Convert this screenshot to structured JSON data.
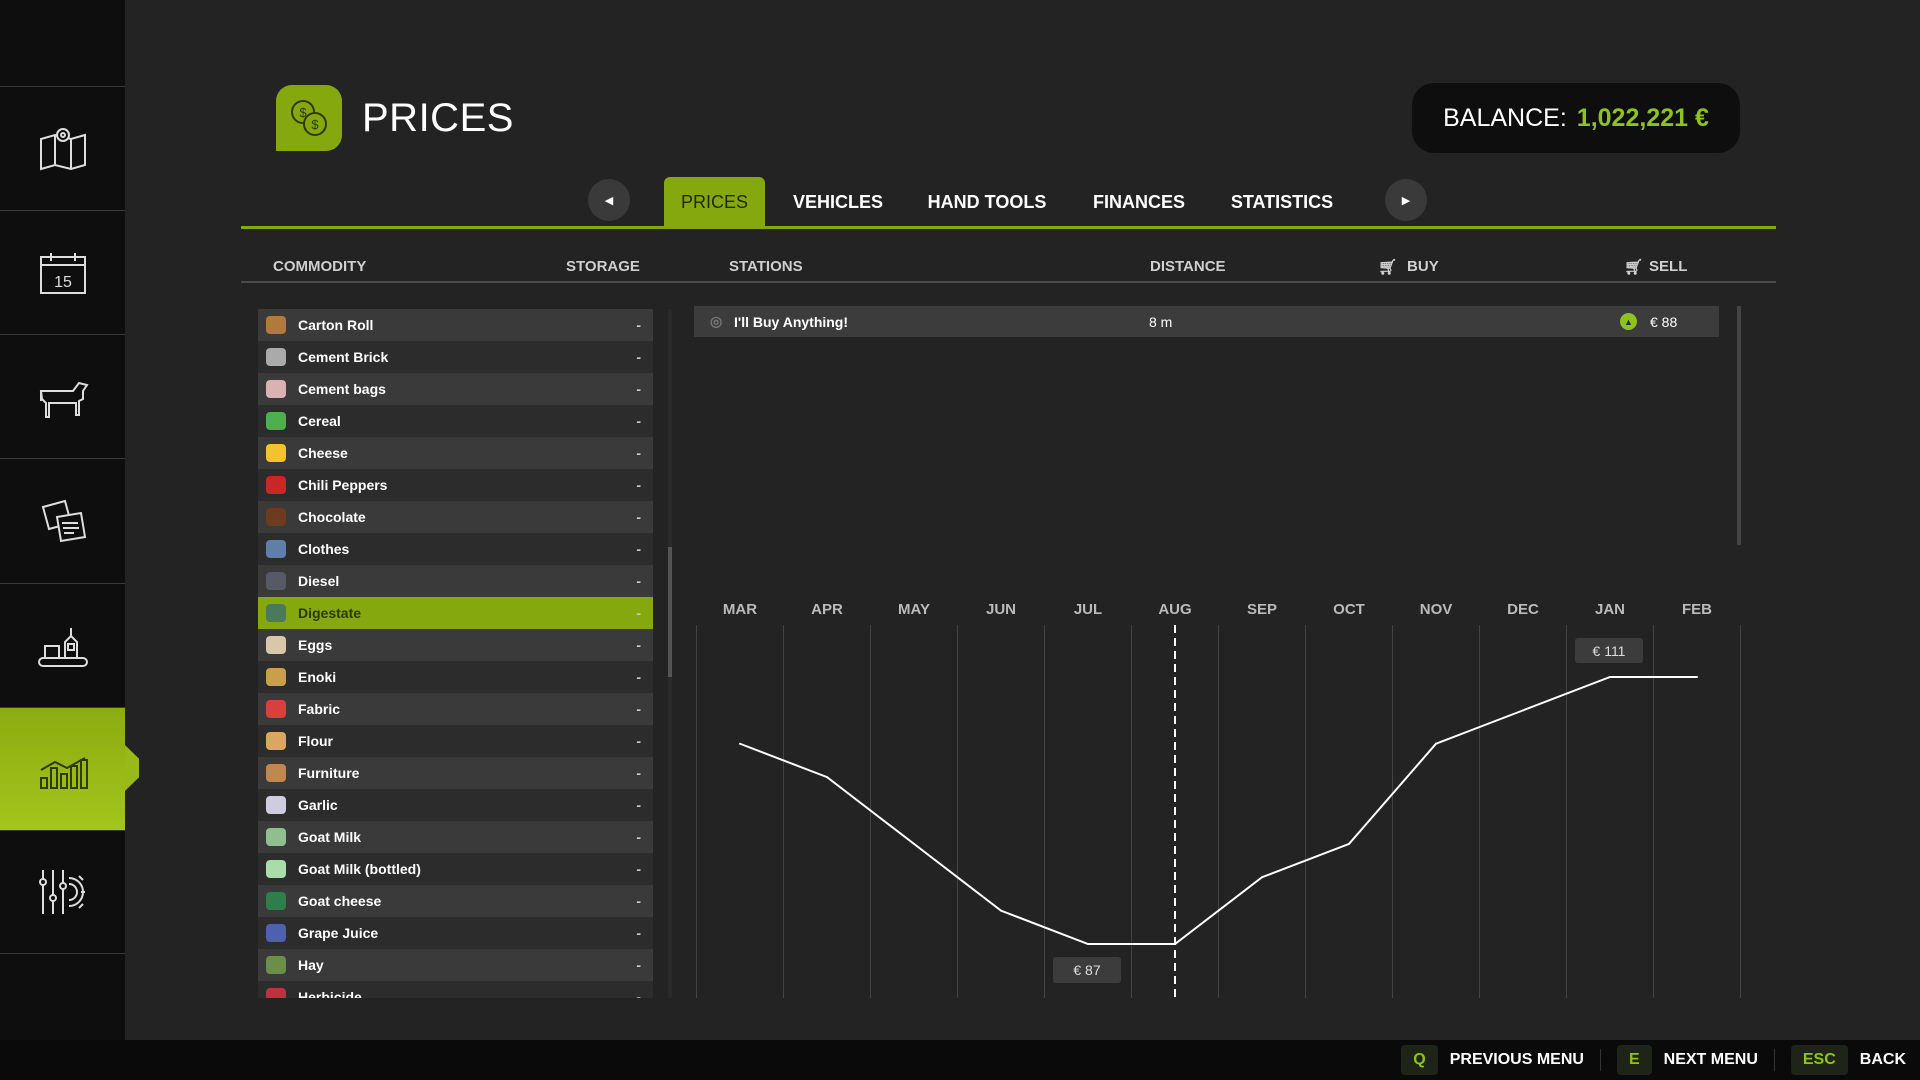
{
  "sidebar": {
    "items": [
      {
        "icon": "map-icon",
        "active": false
      },
      {
        "icon": "calendar-icon",
        "label": "15",
        "active": false
      },
      {
        "icon": "cow-icon",
        "active": false
      },
      {
        "icon": "contracts-icon",
        "active": false
      },
      {
        "icon": "production-icon",
        "active": false
      },
      {
        "icon": "prices-chart-icon",
        "active": true
      },
      {
        "icon": "settings-icon",
        "active": false
      }
    ]
  },
  "header": {
    "title": "PRICES",
    "icon": "coins-icon",
    "balance_label": "BALANCE:",
    "balance_value": "1,022,221 €"
  },
  "tabs": [
    {
      "label": "PRICES",
      "active": true
    },
    {
      "label": "VEHICLES"
    },
    {
      "label": "HAND TOOLS"
    },
    {
      "label": "FINANCES"
    },
    {
      "label": "STATISTICS"
    }
  ],
  "columns": {
    "commodity": "COMMODITY",
    "storage": "STORAGE",
    "stations": "STATIONS",
    "distance": "DISTANCE",
    "buy": "BUY",
    "sell": "SELL"
  },
  "commodities": [
    {
      "name": "Carton Roll",
      "storage": "-",
      "color": "#b07a3c"
    },
    {
      "name": "Cement Brick",
      "storage": "-",
      "color": "#aaaaaa"
    },
    {
      "name": "Cement bags",
      "storage": "-",
      "color": "#d9b3b3"
    },
    {
      "name": "Cereal",
      "storage": "-",
      "color": "#4caf50"
    },
    {
      "name": "Cheese",
      "storage": "-",
      "color": "#f2c230"
    },
    {
      "name": "Chili Peppers",
      "storage": "-",
      "color": "#c62828"
    },
    {
      "name": "Chocolate",
      "storage": "-",
      "color": "#6d3b1e"
    },
    {
      "name": "Clothes",
      "storage": "-",
      "color": "#5d7fa8"
    },
    {
      "name": "Diesel",
      "storage": "-",
      "color": "#555a66"
    },
    {
      "name": "Digestate",
      "storage": "-",
      "color": "#4a7a5a",
      "selected": true
    },
    {
      "name": "Eggs",
      "storage": "-",
      "color": "#d8c7a8"
    },
    {
      "name": "Enoki",
      "storage": "-",
      "color": "#c9a04a"
    },
    {
      "name": "Fabric",
      "storage": "-",
      "color": "#d84040"
    },
    {
      "name": "Flour",
      "storage": "-",
      "color": "#d8a860"
    },
    {
      "name": "Furniture",
      "storage": "-",
      "color": "#c08850"
    },
    {
      "name": "Garlic",
      "storage": "-",
      "color": "#d0cce0"
    },
    {
      "name": "Goat Milk",
      "storage": "-",
      "color": "#8fbf8f"
    },
    {
      "name": "Goat Milk (bottled)",
      "storage": "-",
      "color": "#a8dca8"
    },
    {
      "name": "Goat cheese",
      "storage": "-",
      "color": "#2e7d4a"
    },
    {
      "name": "Grape Juice",
      "storage": "-",
      "color": "#5060b0"
    },
    {
      "name": "Hay",
      "storage": "-",
      "color": "#6b8f4a"
    },
    {
      "name": "Herbicide",
      "storage": "-",
      "color": "#c03040"
    }
  ],
  "stations": [
    {
      "name": "I'll Buy Anything!",
      "distance": "8 m",
      "sell_price": "€ 88",
      "trend": "up"
    }
  ],
  "chart_data": {
    "type": "line",
    "categories": [
      "MAR",
      "APR",
      "MAY",
      "JUN",
      "JUL",
      "AUG",
      "SEP",
      "OCT",
      "NOV",
      "DEC",
      "JAN",
      "FEB"
    ],
    "values": [
      105,
      102,
      96,
      90,
      87,
      87,
      93,
      96,
      105,
      108,
      111,
      111
    ],
    "current_month": "AUG",
    "min_label": "€ 87",
    "max_label": "€ 111",
    "ylim": [
      87,
      111
    ],
    "grid": true
  },
  "colors": {
    "accent": "#86a80f",
    "balance": "#8dc21f"
  },
  "footer": [
    {
      "key": "Q",
      "label": "PREVIOUS MENU"
    },
    {
      "key": "E",
      "label": "NEXT MENU"
    },
    {
      "key": "ESC",
      "label": "BACK"
    }
  ]
}
